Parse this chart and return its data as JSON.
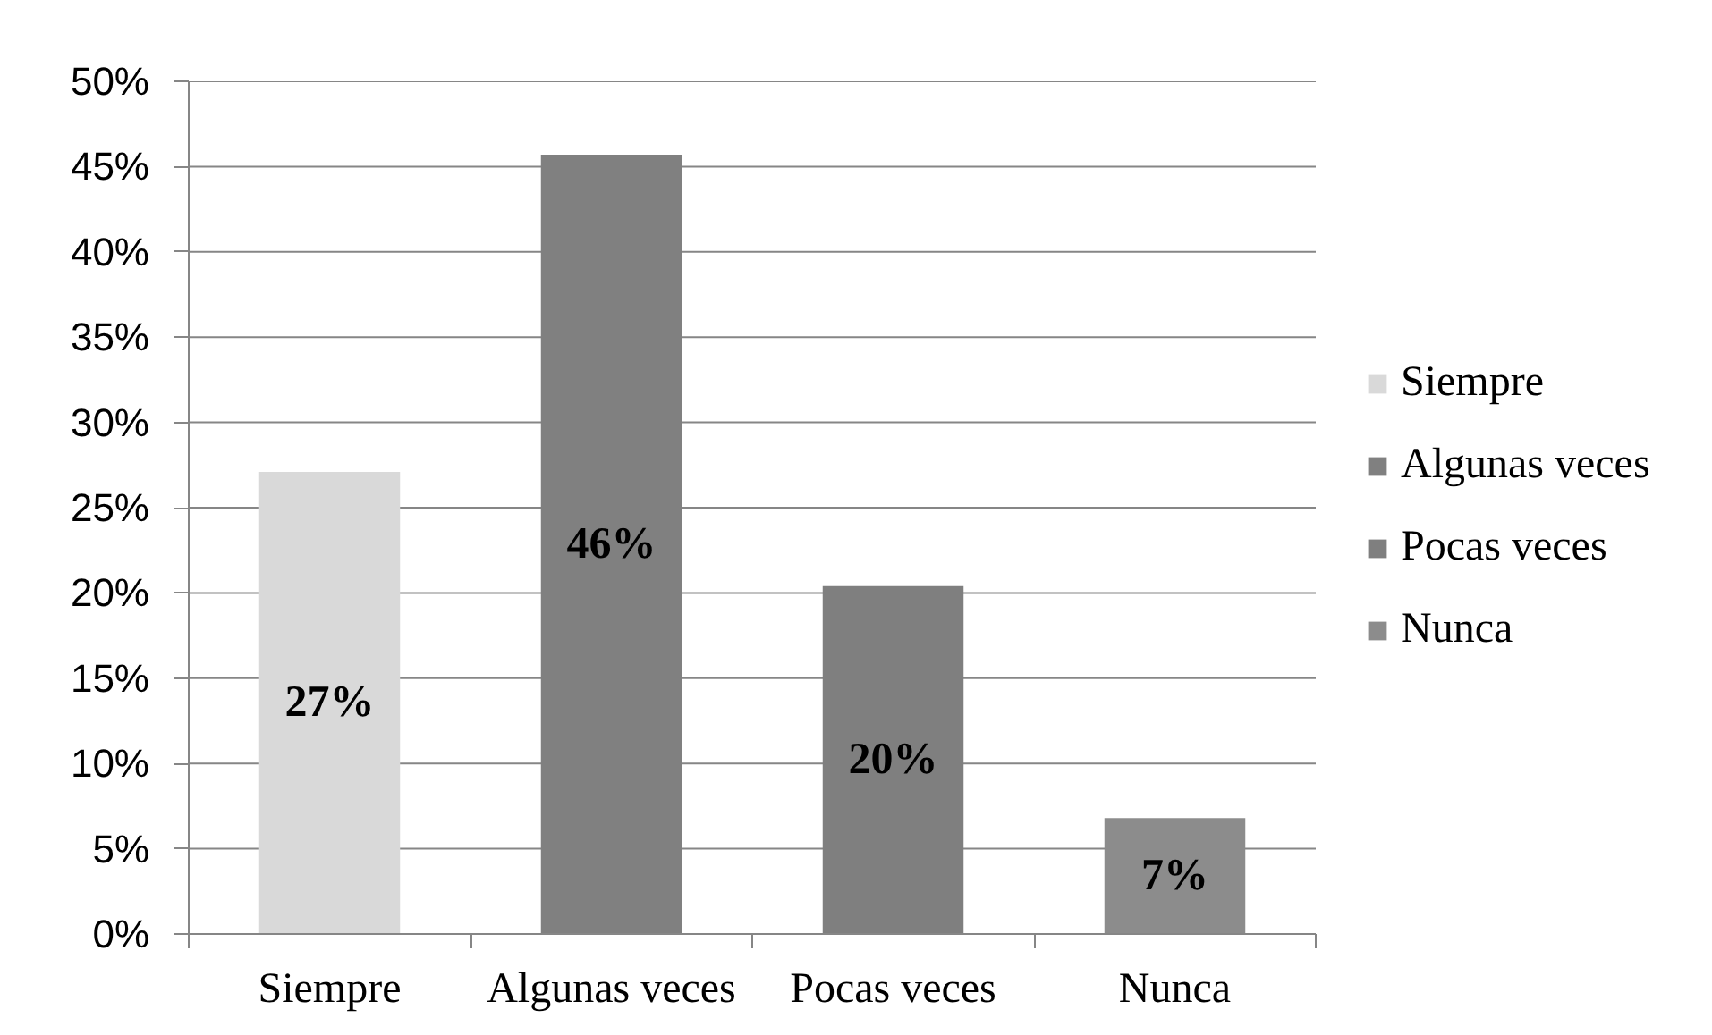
{
  "chart_data": {
    "type": "bar",
    "categories": [
      "Siempre",
      "Algunas veces",
      "Pocas veces",
      "Nunca"
    ],
    "stacked": true,
    "series": [
      {
        "name": "Siempre",
        "color": "#d9d9d9",
        "values": [
          27.1,
          null,
          null,
          null
        ],
        "value_labels": [
          "27%",
          null,
          null,
          null
        ]
      },
      {
        "name": "Algunas veces",
        "color": "#808080",
        "values": [
          null,
          45.7,
          null,
          null
        ],
        "value_labels": [
          null,
          "46%",
          null,
          null
        ]
      },
      {
        "name": "Pocas veces",
        "color": "#7f7f7f",
        "values": [
          null,
          null,
          20.4,
          null
        ],
        "value_labels": [
          null,
          null,
          "20%",
          null
        ]
      },
      {
        "name": "Nunca",
        "color": "#8c8c8c",
        "values": [
          null,
          null,
          null,
          6.8
        ],
        "value_labels": [
          null,
          null,
          null,
          "7%"
        ]
      }
    ],
    "ylim": [
      0,
      50
    ],
    "yticks": [
      {
        "value": 0,
        "label": "0%"
      },
      {
        "value": 5,
        "label": "5%"
      },
      {
        "value": 10,
        "label": "10%"
      },
      {
        "value": 15,
        "label": "15%"
      },
      {
        "value": 20,
        "label": "20%"
      },
      {
        "value": 25,
        "label": "25%"
      },
      {
        "value": 30,
        "label": "30%"
      },
      {
        "value": 35,
        "label": "35%"
      },
      {
        "value": 40,
        "label": "40%"
      },
      {
        "value": 45,
        "label": "45%"
      },
      {
        "value": 50,
        "label": "50%"
      }
    ],
    "grid": "y",
    "legend": "right"
  }
}
